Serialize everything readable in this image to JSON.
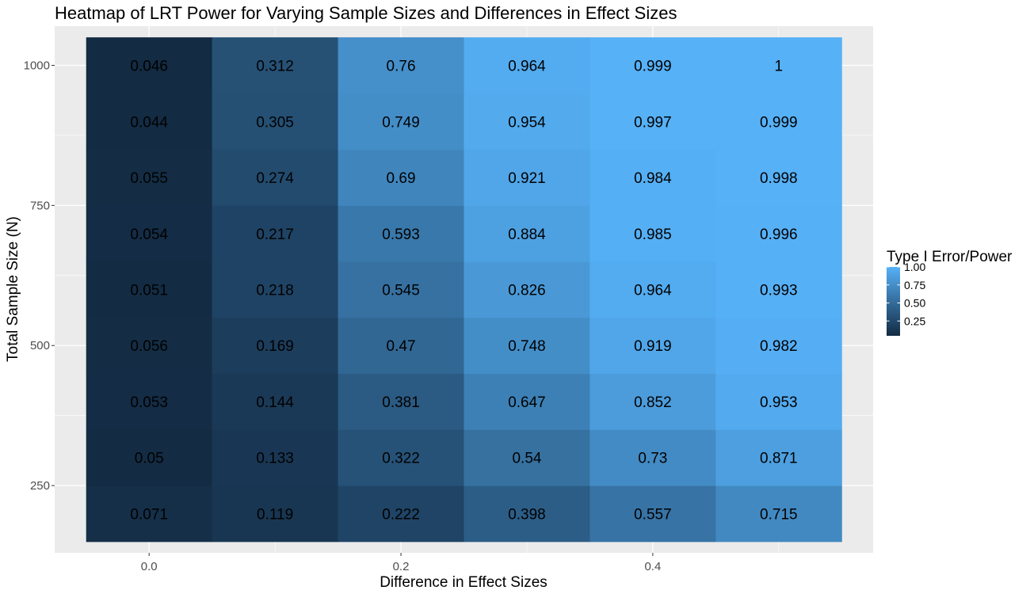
{
  "chart_data": {
    "type": "heatmap",
    "title": "Heatmap of LRT Power for Varying Sample Sizes and Differences in Effect Sizes",
    "xlabel": "Difference in Effect Sizes",
    "ylabel": "Total Sample Size (N)",
    "x": [
      0.0,
      0.1,
      0.2,
      0.3,
      0.4,
      0.5
    ],
    "y": [
      200,
      300,
      400,
      500,
      600,
      700,
      800,
      900,
      1000
    ],
    "values": [
      [
        0.071,
        0.119,
        0.222,
        0.398,
        0.557,
        0.715
      ],
      [
        0.05,
        0.133,
        0.322,
        0.54,
        0.73,
        0.871
      ],
      [
        0.053,
        0.144,
        0.381,
        0.647,
        0.852,
        0.953
      ],
      [
        0.056,
        0.169,
        0.47,
        0.748,
        0.919,
        0.982
      ],
      [
        0.051,
        0.218,
        0.545,
        0.826,
        0.964,
        0.993
      ],
      [
        0.054,
        0.217,
        0.593,
        0.884,
        0.985,
        0.996
      ],
      [
        0.055,
        0.274,
        0.69,
        0.921,
        0.984,
        0.998
      ],
      [
        0.044,
        0.305,
        0.749,
        0.954,
        0.997,
        0.999
      ],
      [
        0.046,
        0.312,
        0.76,
        0.964,
        0.999,
        1
      ]
    ],
    "value_labels": [
      [
        "0.071",
        "0.119",
        "0.222",
        "0.398",
        "0.557",
        "0.715"
      ],
      [
        "0.05",
        "0.133",
        "0.322",
        "0.54",
        "0.73",
        "0.871"
      ],
      [
        "0.053",
        "0.144",
        "0.381",
        "0.647",
        "0.852",
        "0.953"
      ],
      [
        "0.056",
        "0.169",
        "0.47",
        "0.748",
        "0.919",
        "0.982"
      ],
      [
        "0.051",
        "0.218",
        "0.545",
        "0.826",
        "0.964",
        "0.993"
      ],
      [
        "0.054",
        "0.217",
        "0.593",
        "0.884",
        "0.985",
        "0.996"
      ],
      [
        "0.055",
        "0.274",
        "0.69",
        "0.921",
        "0.984",
        "0.998"
      ],
      [
        "0.044",
        "0.305",
        "0.749",
        "0.954",
        "0.997",
        "0.999"
      ],
      [
        "0.046",
        "0.312",
        "0.76",
        "0.964",
        "0.999",
        "1"
      ]
    ],
    "x_ticks": [
      0.0,
      0.2,
      0.4
    ],
    "x_tick_labels": [
      "0.0",
      "0.2",
      "0.4"
    ],
    "y_ticks": [
      250,
      500,
      750,
      1000
    ],
    "y_tick_labels": [
      "250",
      "500",
      "750",
      "1000"
    ],
    "xlim": [
      -0.075,
      0.575
    ],
    "ylim": [
      130,
      1070
    ],
    "legend": {
      "title": "Type I Error/Power",
      "placement": "right",
      "breaks": [
        0.25,
        0.5,
        0.75,
        1.0
      ],
      "labels": [
        "0.25",
        "0.50",
        "0.75",
        "1.00"
      ],
      "range": [
        0.044,
        1.0
      ]
    },
    "colors": {
      "low": "#132B43",
      "high": "#56B1F7",
      "panel": "#EBEBEB",
      "grid": "#FFFFFF"
    },
    "grid": true
  }
}
